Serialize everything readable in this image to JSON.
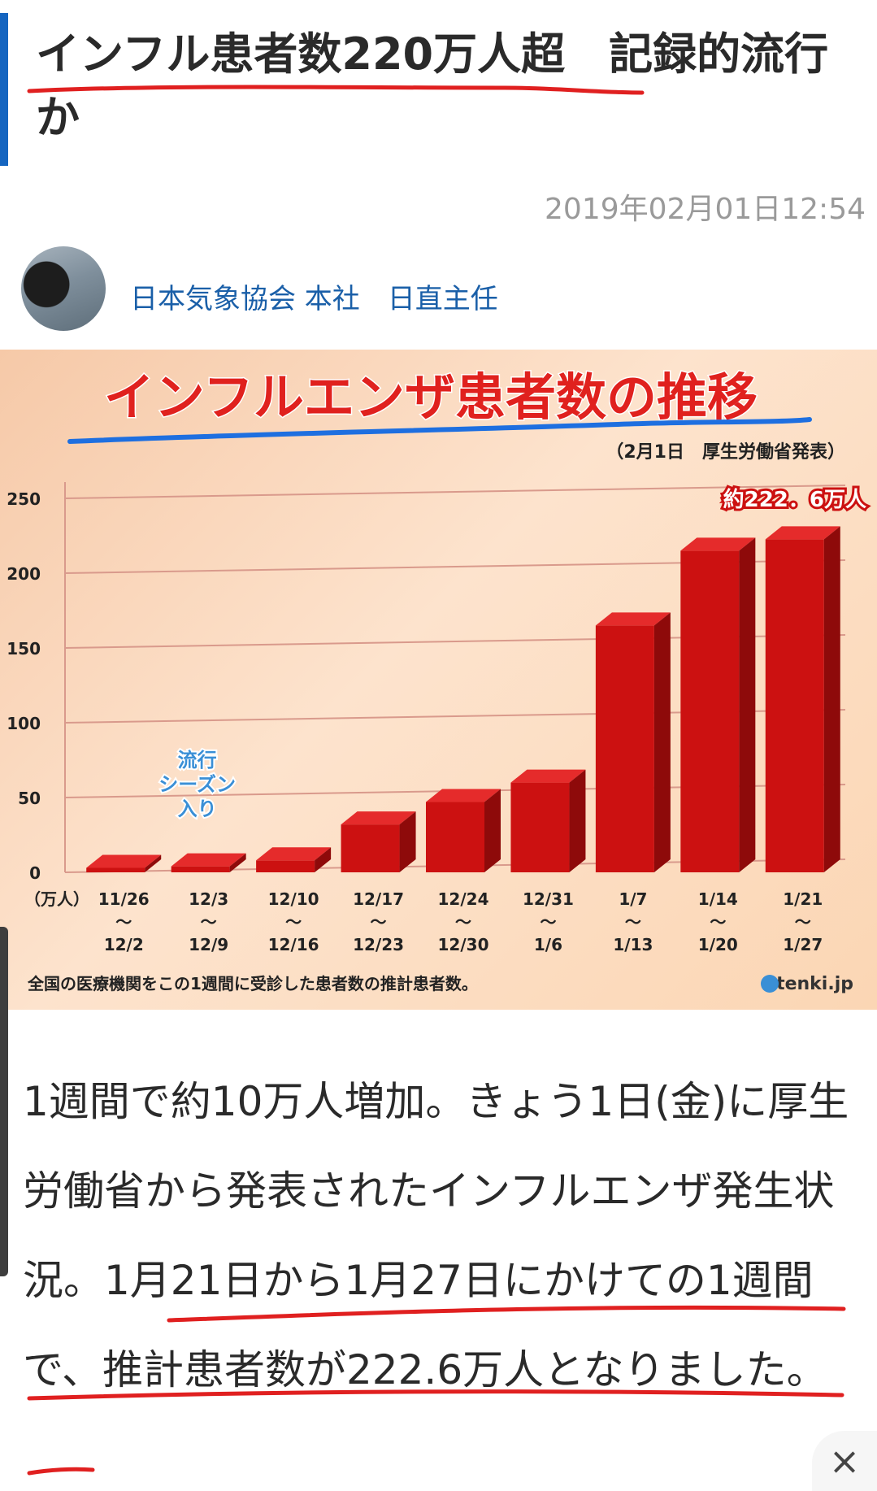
{
  "article": {
    "title": "インフル患者数220万人超　記録的流行か",
    "timestamp": "2019年02月01日12:54",
    "author": "日本気象協会 本社　日直主任",
    "body": "1週間で約10万人増加。きょう1日(金)に厚生労働省から発表されたインフルエンザ発生状況。1月21日から1月27日にかけての1週間で、推計患者数が222.6万人となりました。",
    "close_icon": "×"
  },
  "chart_data": {
    "type": "bar",
    "title": "インフルエンザ患者数の推移",
    "subtitle": "（2月1日　厚生労働省発表）",
    "unit_label": "（万人）",
    "categories": [
      "11/26〜12/2",
      "12/3〜12/9",
      "12/10〜12/16",
      "12/17〜12/23",
      "12/24〜12/30",
      "12/31〜1/6",
      "1/7〜1/13",
      "1/14〜1/20",
      "1/21〜1/27"
    ],
    "category_labels": [
      [
        "11/26",
        "〜",
        "12/2"
      ],
      [
        "12/3",
        "〜",
        "12/9"
      ],
      [
        "12/10",
        "〜",
        "12/16"
      ],
      [
        "12/17",
        "〜",
        "12/23"
      ],
      [
        "12/24",
        "〜",
        "12/30"
      ],
      [
        "12/31",
        "〜",
        "1/6"
      ],
      [
        "1/7",
        "〜",
        "1/13"
      ],
      [
        "1/14",
        "〜",
        "1/20"
      ],
      [
        "1/21",
        "〜",
        "1/27"
      ]
    ],
    "values": [
      3,
      4,
      8,
      32,
      47,
      60,
      165,
      215,
      222.6
    ],
    "ylim": [
      0,
      250
    ],
    "yticks": [
      0,
      50,
      100,
      150,
      200,
      250
    ],
    "annotation_season": [
      "流行",
      "シーズン",
      "入り"
    ],
    "annotation_peak": "約222．6万人",
    "footnote": "全国の医療機関をこの1週間に受診した患者数の推計患者数。",
    "source": "tenki.jp",
    "colors": {
      "bar": "#cc1111",
      "bar_top": "#e52b2b",
      "bar_side": "#8e0a0a",
      "title": "#e0211e",
      "grid": "#d99a8c",
      "season": "#3a8fd6"
    }
  }
}
